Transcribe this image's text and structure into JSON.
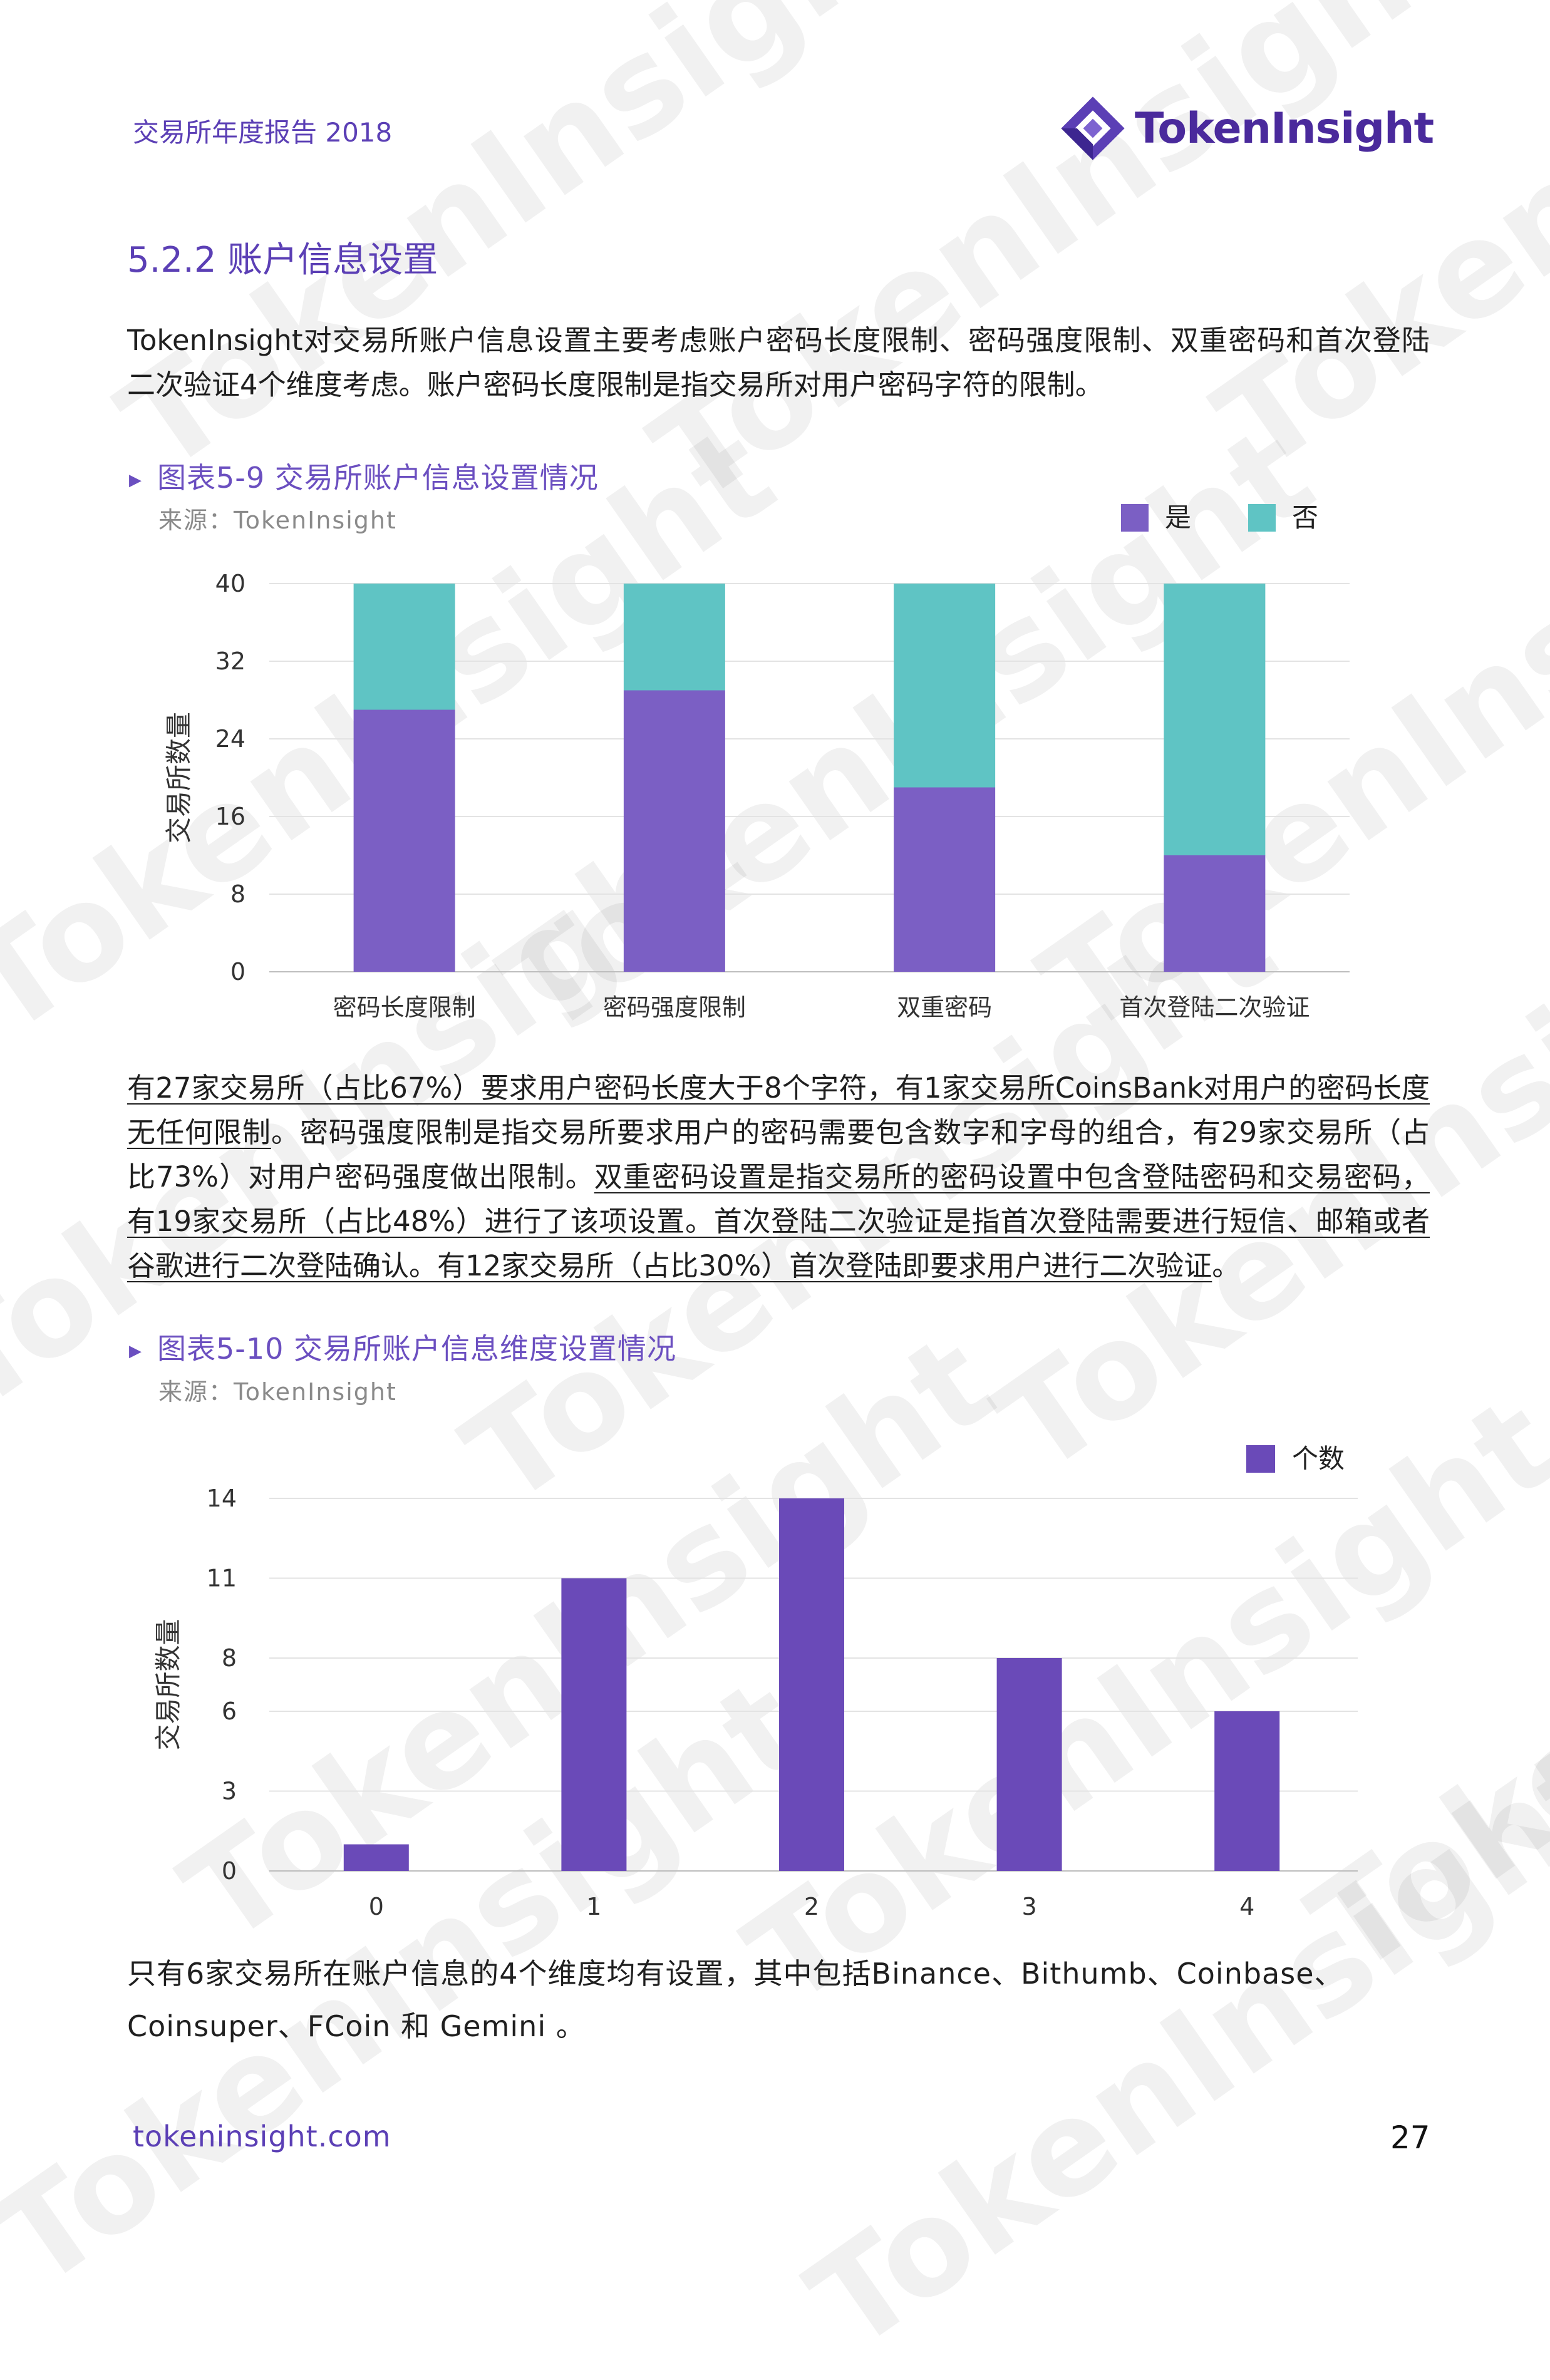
{
  "header": {
    "report_title": "交易所年度报告 2018",
    "logo_text": "TokenInsight",
    "brand_color": "#5b3fb5"
  },
  "watermark": "TokenInsight",
  "section": {
    "title": "5.2.2 账户信息设置",
    "intro": "TokenInsight对交易所账户信息设置主要考虑账户密码长度限制、密码强度限制、双重密码和首次登陆二次验证4个维度考虑。账户密码长度限制是指交易所对用户密码字符的限制。"
  },
  "figure1": {
    "title": "图表5-9 交易所账户信息设置情况",
    "source": "来源：TokenInsight"
  },
  "figure2": {
    "title": "图表5-10 交易所账户信息维度设置情况",
    "source": "来源：TokenInsight"
  },
  "analysis": {
    "s1": "有27家交易所（占比67%）要求用户密码长度大于8个字符，有1家交易所CoinsBank对用户的密码长度无任何限制",
    "s2": "。密码强度限制是指交易所要求用户的密码需要包含数字和字母的组合，有29家交易所（占比73%）对用户密码强度做出限制。",
    "s3": "双重密码设置是指交易所的密码设置中包含登陆密码和交易密码，有19家交易所（占比48%）进行了该项设置。首次登陆二次验证是指首次登陆需要进行短信、邮箱或者谷歌进行二次登陆确认。有12家交易所（占比30%）首次登陆即要求用户进行二次验证",
    "s4": "。"
  },
  "closing": "只有6家交易所在账户信息的4个维度均有设置，其中包括Binance、Bithumb、Coinbase、Coinsuper、FCoin 和 Gemini 。",
  "footer": {
    "url": "tokeninsight.com",
    "page": "27"
  },
  "chart_data": [
    {
      "type": "bar",
      "stacked": true,
      "categories": [
        "密码长度限制",
        "密码强度限制",
        "双重密码",
        "首次登陆二次验证"
      ],
      "series": [
        {
          "name": "是",
          "values": [
            27,
            29,
            19,
            12
          ],
          "color": "#7b5fc4"
        },
        {
          "name": "否",
          "values": [
            13,
            11,
            21,
            28
          ],
          "color": "#5fc4c4"
        }
      ],
      "ylabel": "交易所数量",
      "ylim": [
        0,
        40
      ],
      "yticks": [
        "0",
        "8",
        "16",
        "24",
        "32",
        "40"
      ],
      "legend": "top-right",
      "grid": true
    },
    {
      "type": "bar",
      "categories": [
        "0",
        "1",
        "2",
        "3",
        "4"
      ],
      "series": [
        {
          "name": "个数",
          "values": [
            1,
            11,
            14,
            8,
            6
          ],
          "color": "#6a4ab8"
        }
      ],
      "ylabel": "交易所数量",
      "ylim": [
        0,
        14
      ],
      "yticks": [
        "0",
        "3",
        "6",
        "8",
        "11",
        "14"
      ],
      "legend": "top-right",
      "grid": true
    }
  ]
}
